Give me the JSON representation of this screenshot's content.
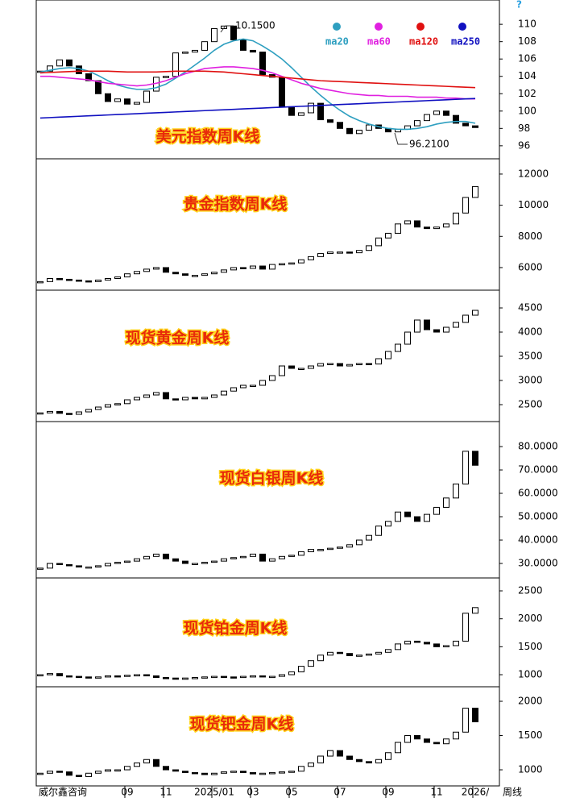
{
  "help": "?",
  "footer": {
    "source": "威尔鑫咨询",
    "period": "周线",
    "categories": [
      null,
      null,
      null,
      null,
      null,
      null,
      null,
      null,
      null,
      "09",
      null,
      null,
      null,
      "11",
      null,
      null,
      null,
      null,
      "2025/01",
      null,
      null,
      null,
      "03",
      null,
      null,
      null,
      "05",
      null,
      null,
      null,
      null,
      "07",
      null,
      null,
      null,
      null,
      "09",
      null,
      null,
      null,
      null,
      "11",
      null,
      null,
      null,
      "2026/"
    ]
  },
  "chart_data": [
    {
      "type": "candlestick",
      "title": "美元指数周K线",
      "annotations": [
        "10.1500",
        "96.2100"
      ],
      "ylim": [
        94.5,
        112.8
      ],
      "yticks": [
        96,
        98,
        100,
        102,
        104,
        106,
        108,
        110
      ],
      "values": [
        104.6,
        105.2,
        105.9,
        105.2,
        104.3,
        103.5,
        102.0,
        101.1,
        101.4,
        100.8,
        101.0,
        102.3,
        103.9,
        104.0,
        106.7,
        106.8,
        107.0,
        108.0,
        109.5,
        109.8,
        108.2,
        107.0,
        106.8,
        104.2,
        103.9,
        100.5,
        99.5,
        99.8,
        100.9,
        99.0,
        98.7,
        98.0,
        97.4,
        97.8,
        98.4,
        98.0,
        97.6,
        97.9,
        98.3,
        98.9,
        99.6,
        100.0,
        99.5,
        98.6,
        98.3,
        98.1
      ],
      "series": [
        {
          "name": "ma20",
          "color": "#2e9fc0",
          "values": [
            104.5,
            104.7,
            104.9,
            105.0,
            104.9,
            104.6,
            104.1,
            103.5,
            103.0,
            102.7,
            102.5,
            102.5,
            102.7,
            103.1,
            103.8,
            104.5,
            105.3,
            106.1,
            107.0,
            107.7,
            108.1,
            108.3,
            108.1,
            107.5,
            106.8,
            106.0,
            105.0,
            103.9,
            102.8,
            101.8,
            100.9,
            100.1,
            99.4,
            98.9,
            98.5,
            98.2,
            98.0,
            97.9,
            97.9,
            98.0,
            98.2,
            98.5,
            98.7,
            98.8,
            98.8,
            98.6
          ]
        },
        {
          "name": "ma60",
          "color": "#e020e0",
          "values": [
            104.0,
            104.0,
            103.9,
            103.8,
            103.7,
            103.6,
            103.4,
            103.2,
            103.1,
            103.0,
            102.9,
            103.0,
            103.2,
            103.5,
            103.9,
            104.3,
            104.6,
            104.9,
            105.0,
            105.1,
            105.1,
            105.0,
            104.9,
            104.7,
            104.4,
            104.0,
            103.6,
            103.2,
            102.9,
            102.6,
            102.4,
            102.2,
            102.0,
            101.9,
            101.8,
            101.8,
            101.7,
            101.7,
            101.7,
            101.6,
            101.6,
            101.6,
            101.5,
            101.5,
            101.4,
            101.4
          ]
        },
        {
          "name": "ma120",
          "color": "#e01010",
          "values": [
            104.4,
            104.45,
            104.5,
            104.55,
            104.6,
            104.6,
            104.6,
            104.6,
            104.55,
            104.5,
            104.5,
            104.5,
            104.5,
            104.55,
            104.6,
            104.6,
            104.6,
            104.6,
            104.55,
            104.5,
            104.4,
            104.3,
            104.2,
            104.1,
            104.0,
            103.9,
            103.8,
            103.7,
            103.6,
            103.5,
            103.45,
            103.4,
            103.35,
            103.3,
            103.25,
            103.2,
            103.15,
            103.1,
            103.05,
            103.0,
            102.95,
            102.9,
            102.85,
            102.8,
            102.75,
            102.7
          ]
        },
        {
          "name": "ma250",
          "color": "#1010c0",
          "values": [
            99.2,
            99.25,
            99.3,
            99.35,
            99.4,
            99.45,
            99.5,
            99.55,
            99.6,
            99.65,
            99.7,
            99.75,
            99.8,
            99.85,
            99.9,
            99.95,
            100.0,
            100.05,
            100.1,
            100.15,
            100.2,
            100.25,
            100.3,
            100.35,
            100.4,
            100.45,
            100.5,
            100.55,
            100.6,
            100.65,
            100.7,
            100.75,
            100.8,
            100.85,
            100.9,
            100.95,
            101.0,
            101.05,
            101.1,
            101.15,
            101.2,
            101.25,
            101.3,
            101.35,
            101.4,
            101.45
          ]
        }
      ]
    },
    {
      "type": "candlestick",
      "title": "贵金指数周K线",
      "ylim": [
        4550,
        12980
      ],
      "yticks": [
        6000,
        8000,
        10000,
        12000
      ],
      "values": [
        5100,
        5300,
        5250,
        5200,
        5150,
        5100,
        5200,
        5300,
        5400,
        5600,
        5750,
        5900,
        6000,
        5700,
        5600,
        5500,
        5500,
        5600,
        5700,
        5850,
        6000,
        5950,
        6100,
        5900,
        6200,
        6250,
        6300,
        6500,
        6700,
        6900,
        7000,
        7000,
        6950,
        7100,
        7400,
        7900,
        8200,
        8800,
        9000,
        8600,
        8500,
        8600,
        8800,
        9500,
        10500,
        11200
      ]
    },
    {
      "type": "candlestick",
      "title": "现货黄金周K线",
      "ylim": [
        2150,
        4867
      ],
      "yticks": [
        2500,
        3000,
        3500,
        4000,
        4500
      ],
      "values": [
        2330,
        2360,
        2320,
        2300,
        2350,
        2400,
        2450,
        2500,
        2520,
        2600,
        2650,
        2700,
        2750,
        2620,
        2600,
        2650,
        2620,
        2650,
        2700,
        2780,
        2850,
        2900,
        2900,
        3000,
        3100,
        3300,
        3250,
        3250,
        3300,
        3350,
        3350,
        3300,
        3330,
        3350,
        3340,
        3450,
        3600,
        3750,
        4000,
        4250,
        4050,
        4000,
        4100,
        4200,
        4350,
        4450
      ]
    },
    {
      "type": "candlestick",
      "title": "现货白银周K线",
      "ylim": [
        23.8,
        90.7
      ],
      "yticks": [
        {
          "value": 30,
          "label": "30.0000"
        },
        {
          "value": 40,
          "label": "40.0000"
        },
        {
          "value": 50,
          "label": "50.0000"
        },
        {
          "value": 60,
          "label": "60.0000"
        },
        {
          "value": 70,
          "label": "70.0000"
        },
        {
          "value": 80,
          "label": "80.0000"
        }
      ],
      "values": [
        28,
        30,
        29.5,
        29,
        28.5,
        28.5,
        29,
        30,
        30.5,
        31,
        32,
        33,
        34,
        32,
        31,
        30,
        30,
        30.5,
        31,
        32,
        32.5,
        33,
        34,
        31,
        32,
        33,
        33.5,
        35,
        36,
        36,
        36.5,
        37,
        38,
        40,
        42,
        46,
        48,
        52,
        50,
        48,
        51,
        54,
        58,
        64,
        78,
        72
      ]
    },
    {
      "type": "candlestick",
      "title": "现货铂金周K线",
      "ylim": [
        784,
        2731
      ],
      "yticks": [
        1000,
        1500,
        2000,
        2500
      ],
      "values": [
        1000,
        1020,
        980,
        970,
        960,
        950,
        960,
        980,
        970,
        990,
        1000,
        980,
        950,
        940,
        930,
        940,
        950,
        960,
        970,
        960,
        950,
        970,
        980,
        960,
        970,
        1000,
        1050,
        1150,
        1250,
        1350,
        1400,
        1380,
        1340,
        1350,
        1370,
        1400,
        1450,
        1550,
        1600,
        1580,
        1550,
        1500,
        1520,
        1600,
        2100,
        2200
      ]
    },
    {
      "type": "candlestick",
      "title": "现货钯金周K线",
      "ylim": [
        765,
        2212
      ],
      "yticks": [
        1000,
        1500,
        2000
      ],
      "values": [
        950,
        980,
        970,
        920,
        900,
        950,
        980,
        1000,
        1000,
        1050,
        1100,
        1150,
        1050,
        1000,
        980,
        960,
        950,
        930,
        950,
        970,
        980,
        960,
        940,
        950,
        960,
        970,
        980,
        1050,
        1100,
        1200,
        1280,
        1200,
        1150,
        1120,
        1100,
        1150,
        1250,
        1400,
        1500,
        1450,
        1400,
        1380,
        1450,
        1550,
        1900,
        1700
      ]
    }
  ]
}
